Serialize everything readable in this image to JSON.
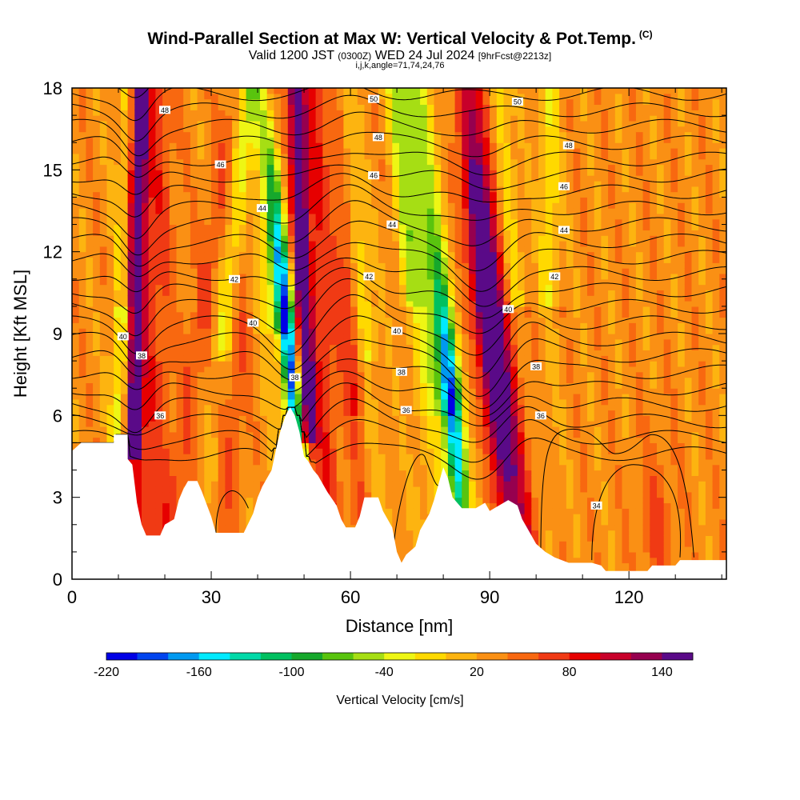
{
  "title": "Wind-Parallel Section at Max W: Vertical Velocity & Pot.Temp.",
  "copyright": "(C)",
  "subtitle_main": "Valid 1200 JST",
  "subtitle_z": "(0300Z)",
  "subtitle_day": "WED 24 Jul 2024",
  "subtitle_fcst": "[9hrFcst@2213z]",
  "subtitle2": "i,j,k,angle=71,74,24,76",
  "colorbar": {
    "label": "Vertical Velocity [cm/s]",
    "tick_labels": [
      "-220",
      "-160",
      "-100",
      "-40",
      "20",
      "80",
      "140"
    ],
    "colors": [
      "#0000e6",
      "#0044ee",
      "#0099f0",
      "#00eaff",
      "#00d9a8",
      "#00c060",
      "#16a82c",
      "#59c40e",
      "#a6de14",
      "#eef614",
      "#ffd900",
      "#fdb410",
      "#fa9014",
      "#f86810",
      "#f03a14",
      "#e60000",
      "#c8002a",
      "#96004f",
      "#5a0a88"
    ]
  },
  "chart_data": {
    "type": "heatmap",
    "xlabel": "Distance [nm]",
    "ylabel": "Height [Kft MSL]",
    "xlim": [
      0,
      141
    ],
    "ylim": [
      0,
      18
    ],
    "xticks": [
      "0",
      "30",
      "60",
      "90",
      "120"
    ],
    "yticks": [
      "0",
      "3",
      "6",
      "9",
      "12",
      "15",
      "18"
    ],
    "terrain_kft": [
      [
        0,
        4.7
      ],
      [
        2,
        5.0
      ],
      [
        9,
        5.0
      ],
      [
        9,
        5.3
      ],
      [
        12,
        5.3
      ],
      [
        12,
        5.0
      ],
      [
        12,
        4.4
      ],
      [
        13,
        4.2
      ],
      [
        14,
        2.8
      ],
      [
        15,
        2.0
      ],
      [
        16,
        1.6
      ],
      [
        19,
        1.6
      ],
      [
        20,
        2.0
      ],
      [
        22,
        2.2
      ],
      [
        23,
        2.9
      ],
      [
        24,
        3.3
      ],
      [
        25,
        3.6
      ],
      [
        27,
        3.6
      ],
      [
        28,
        3.2
      ],
      [
        30,
        2.3
      ],
      [
        31,
        1.7
      ],
      [
        37,
        1.7
      ],
      [
        39,
        2.4
      ],
      [
        40,
        3.0
      ],
      [
        41,
        3.4
      ],
      [
        43,
        4.0
      ],
      [
        44,
        4.8
      ],
      [
        45,
        5.5
      ],
      [
        46,
        6.0
      ],
      [
        47,
        6.3
      ],
      [
        48,
        6.0
      ],
      [
        49,
        5.4
      ],
      [
        50,
        4.5
      ],
      [
        51,
        4.3
      ],
      [
        52,
        4.0
      ],
      [
        53,
        3.8
      ],
      [
        54,
        3.5
      ],
      [
        55,
        3.2
      ],
      [
        57,
        2.7
      ],
      [
        58,
        2.2
      ],
      [
        59,
        1.9
      ],
      [
        61,
        1.9
      ],
      [
        62,
        2.3
      ],
      [
        63,
        3.0
      ],
      [
        66,
        3.0
      ],
      [
        67,
        2.5
      ],
      [
        69,
        1.9
      ],
      [
        70,
        1.0
      ],
      [
        71,
        0.6
      ],
      [
        72,
        0.9
      ],
      [
        74,
        1.2
      ],
      [
        75,
        1.8
      ],
      [
        77,
        2.4
      ],
      [
        78,
        2.9
      ],
      [
        79,
        3.5
      ],
      [
        80,
        4.1
      ],
      [
        81,
        3.7
      ],
      [
        82,
        3.0
      ],
      [
        84,
        2.6
      ],
      [
        85,
        2.6
      ],
      [
        87,
        2.6
      ],
      [
        89,
        2.8
      ],
      [
        90,
        2.5
      ],
      [
        92,
        2.7
      ],
      [
        94,
        2.9
      ],
      [
        96,
        2.7
      ],
      [
        97,
        2.2
      ],
      [
        99,
        1.6
      ],
      [
        100,
        1.3
      ],
      [
        102,
        1.0
      ],
      [
        104,
        0.8
      ],
      [
        107,
        0.6
      ],
      [
        112,
        0.6
      ],
      [
        114,
        0.5
      ],
      [
        115,
        0.3
      ],
      [
        124,
        0.3
      ],
      [
        125,
        0.5
      ],
      [
        130,
        0.5
      ],
      [
        131,
        0.7
      ],
      [
        141,
        0.7
      ]
    ],
    "updraft_cores": [
      {
        "name": "updraft-1",
        "x_top": 14,
        "x_bottom": 13,
        "w_peak_cms": 140
      },
      {
        "name": "updraft-2",
        "x_top": 51,
        "x_bottom": 50,
        "w_peak_cms": 140
      },
      {
        "name": "updraft-3",
        "x_top": 86,
        "x_bottom": 92,
        "w_peak_cms": 150
      }
    ],
    "downdraft_cores": [
      {
        "name": "downdraft-1",
        "x": 48,
        "w_min_cms": -180
      },
      {
        "name": "downdraft-2",
        "x": 82,
        "w_min_cms": -180
      }
    ],
    "isentropes_C": [
      {
        "theta": "34",
        "label_x": 113,
        "label_y": 2.7
      },
      {
        "theta": "36",
        "label_x": 19,
        "label_y": 6.0
      },
      {
        "theta": "36",
        "label_x": 72,
        "label_y": 6.2
      },
      {
        "theta": "36",
        "label_x": 101,
        "label_y": 6.0
      },
      {
        "theta": "38",
        "label_x": 48,
        "label_y": 7.4
      },
      {
        "theta": "38",
        "label_x": 15,
        "label_y": 8.2
      },
      {
        "theta": "38",
        "label_x": 71,
        "label_y": 7.6
      },
      {
        "theta": "38",
        "label_x": 100,
        "label_y": 7.8
      },
      {
        "theta": "40",
        "label_x": 11,
        "label_y": 8.9
      },
      {
        "theta": "40",
        "label_x": 39,
        "label_y": 9.4
      },
      {
        "theta": "40",
        "label_x": 70,
        "label_y": 9.1
      },
      {
        "theta": "40",
        "label_x": 94,
        "label_y": 9.9
      },
      {
        "theta": "42",
        "label_x": 35,
        "label_y": 11.0
      },
      {
        "theta": "42",
        "label_x": 64,
        "label_y": 11.1
      },
      {
        "theta": "42",
        "label_x": 104,
        "label_y": 11.1
      },
      {
        "theta": "44",
        "label_x": 41,
        "label_y": 13.6
      },
      {
        "theta": "44",
        "label_x": 69,
        "label_y": 13.0
      },
      {
        "theta": "44",
        "label_x": 106,
        "label_y": 12.8
      },
      {
        "theta": "46",
        "label_x": 32,
        "label_y": 15.2
      },
      {
        "theta": "46",
        "label_x": 65,
        "label_y": 14.8
      },
      {
        "theta": "46",
        "label_x": 106,
        "label_y": 14.4
      },
      {
        "theta": "48",
        "label_x": 20,
        "label_y": 17.2
      },
      {
        "theta": "48",
        "label_x": 66,
        "label_y": 16.2
      },
      {
        "theta": "48",
        "label_x": 107,
        "label_y": 15.9
      },
      {
        "theta": "50",
        "label_x": 65,
        "label_y": 17.6
      },
      {
        "theta": "50",
        "label_x": 96,
        "label_y": 17.5
      }
    ]
  }
}
